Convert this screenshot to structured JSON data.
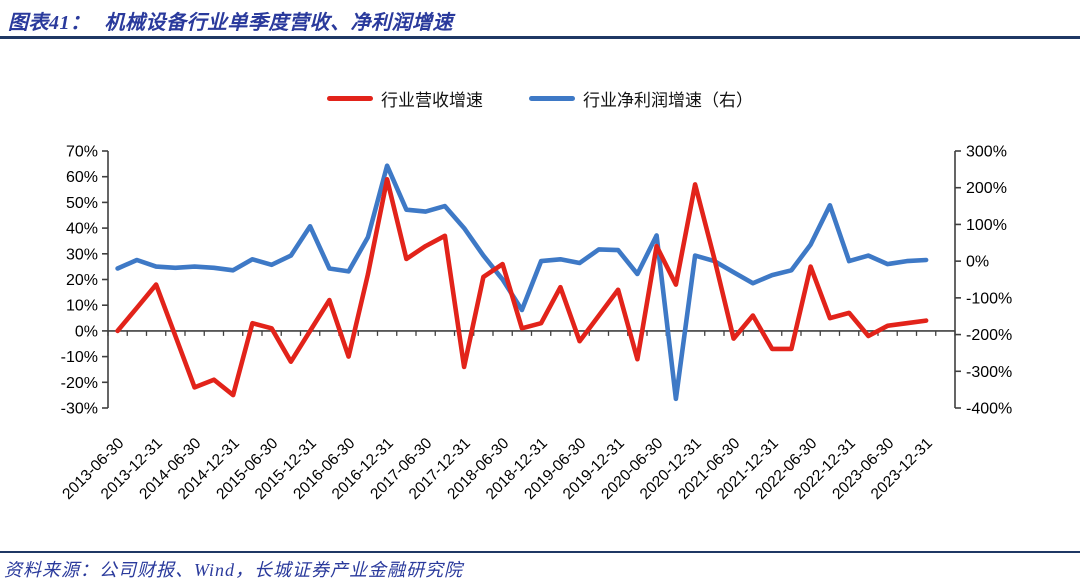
{
  "figure": {
    "label": "图表41：",
    "title": "机械设备行业单季度营收、净利润增速"
  },
  "legend": {
    "revenue": {
      "label": "行业营收增速",
      "color": "#e2231a"
    },
    "profit": {
      "label": "行业净利润增速（右）",
      "color": "#3e79c6"
    }
  },
  "source": "资料来源：公司财报、Wind，长城证券产业金融研究院",
  "colors": {
    "revenue_line": "#e2231a",
    "profit_line": "#3e79c6",
    "axis": "#3f3f3f",
    "title_text": "#2a3a9c",
    "rule": "#1f3864"
  },
  "chart_data": {
    "type": "line",
    "title": "机械设备行业单季度营收、净利润增速",
    "grid": false,
    "legend_position": "top",
    "x": [
      "2013-06-30",
      "2013-09-30",
      "2013-12-31",
      "2014-03-31",
      "2014-06-30",
      "2014-09-30",
      "2014-12-31",
      "2015-03-31",
      "2015-06-30",
      "2015-09-30",
      "2015-12-31",
      "2016-03-31",
      "2016-06-30",
      "2016-09-30",
      "2016-12-31",
      "2017-03-31",
      "2017-06-30",
      "2017-09-30",
      "2017-12-31",
      "2018-03-31",
      "2018-06-30",
      "2018-09-30",
      "2018-12-31",
      "2019-03-31",
      "2019-06-30",
      "2019-09-30",
      "2019-12-31",
      "2020-03-31",
      "2020-06-30",
      "2020-09-30",
      "2020-12-31",
      "2021-03-31",
      "2021-06-30",
      "2021-09-30",
      "2021-12-31",
      "2022-03-31",
      "2022-06-30",
      "2022-09-30",
      "2022-12-31",
      "2023-03-31",
      "2023-06-30",
      "2023-09-30",
      "2023-12-31"
    ],
    "x_tick_labels": [
      "2013-06-30",
      "2013-12-31",
      "2014-06-30",
      "2014-12-31",
      "2015-06-30",
      "2015-12-31",
      "2016-06-30",
      "2016-12-31",
      "2017-06-30",
      "2017-12-31",
      "2018-06-30",
      "2018-12-31",
      "2019-06-30",
      "2019-12-31",
      "2020-06-30",
      "2020-12-31",
      "2021-06-30",
      "2021-12-31",
      "2022-06-30",
      "2022-12-31",
      "2023-06-30",
      "2023-12-31"
    ],
    "series": [
      {
        "name": "行业营收增速",
        "axis": "left",
        "color": "#e2231a",
        "unit": "%",
        "values": [
          0,
          9,
          18,
          -2,
          -22,
          -19,
          -25,
          3,
          1,
          -12,
          0,
          12,
          -10,
          22,
          59,
          28,
          33,
          37,
          -14,
          21,
          26,
          1,
          3,
          17,
          -4,
          6,
          16,
          -11,
          33,
          18,
          57,
          28,
          -3,
          6,
          -7,
          -7,
          25,
          5,
          7,
          -2,
          2,
          3,
          4
        ]
      },
      {
        "name": "行业净利润增速（右）",
        "axis": "right",
        "color": "#3e79c6",
        "unit": "%",
        "values": [
          -20,
          3,
          -15,
          -18,
          -15,
          -18,
          -25,
          5,
          -10,
          15,
          95,
          -20,
          -28,
          65,
          260,
          140,
          135,
          150,
          90,
          15,
          -50,
          -133,
          0,
          5,
          -5,
          32,
          30,
          -35,
          70,
          -375,
          15,
          0,
          -30,
          -60,
          -38,
          -25,
          45,
          152,
          0,
          15,
          -8,
          0,
          3
        ]
      }
    ],
    "left_axis": {
      "min": -30,
      "max": 70,
      "step": 10,
      "tick_labels": [
        "70%",
        "60%",
        "50%",
        "40%",
        "30%",
        "20%",
        "10%",
        "0%",
        "-10%",
        "-20%",
        "-30%"
      ]
    },
    "right_axis": {
      "min": -400,
      "max": 300,
      "step": 100,
      "tick_labels": [
        "300%",
        "200%",
        "100%",
        "0%",
        "-100%",
        "-200%",
        "-300%",
        "-400%"
      ]
    }
  }
}
